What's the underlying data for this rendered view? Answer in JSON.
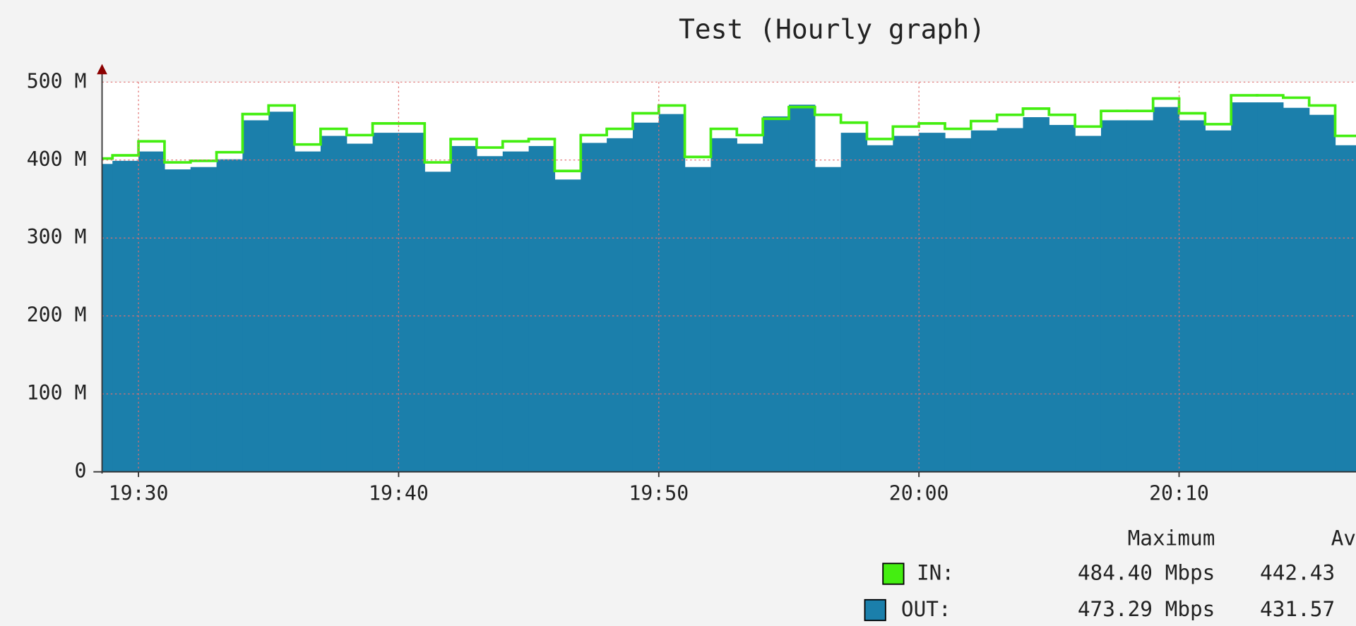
{
  "chart_data": {
    "type": "step-area",
    "title": "Test (Hourly graph)",
    "x": [
      1168,
      1169,
      1170,
      1171,
      1172,
      1173,
      1174,
      1175,
      1176,
      1177,
      1178,
      1179,
      1180,
      1181,
      1182,
      1183,
      1184,
      1185,
      1186,
      1187,
      1188,
      1189,
      1190,
      1191,
      1192,
      1193,
      1194,
      1195,
      1196,
      1197,
      1198,
      1199,
      1200,
      1201,
      1202,
      1203,
      1204,
      1205,
      1206,
      1207,
      1208,
      1209,
      1210,
      1211,
      1212,
      1213,
      1214,
      1215,
      1216
    ],
    "xlim": [
      1168.6,
      1216.8
    ],
    "xticks": [
      {
        "value": 1170,
        "label": "19:30"
      },
      {
        "value": 1180,
        "label": "19:40"
      },
      {
        "value": 1190,
        "label": "19:50"
      },
      {
        "value": 1200,
        "label": "20:00"
      },
      {
        "value": 1210,
        "label": "20:10"
      }
    ],
    "ylim": [
      0,
      500
    ],
    "yticks": [
      0,
      {
        "value": 100,
        "label": "100 M"
      },
      {
        "value": 200,
        "label": "200 M"
      },
      {
        "value": 300,
        "label": "300 M"
      },
      {
        "value": 400,
        "label": "400 M"
      },
      {
        "value": 500,
        "label": "500 M"
      }
    ],
    "grid": true,
    "series": [
      {
        "name": "IN:",
        "color": "#44ee11",
        "style": "line",
        "values": [
          402,
          406,
          424,
          397,
          399,
          410,
          459,
          470,
          420,
          440,
          432,
          447,
          447,
          397,
          427,
          416,
          424,
          427,
          386,
          432,
          440,
          460,
          470,
          404,
          440,
          432,
          453,
          468,
          458,
          448,
          427,
          443,
          447,
          440,
          450,
          458,
          466,
          458,
          443,
          463,
          463,
          479,
          460,
          446,
          483,
          483,
          480,
          470,
          431
        ]
      },
      {
        "name": "OUT:",
        "color": "#1b7fab",
        "style": "area",
        "values": [
          395,
          399,
          411,
          388,
          391,
          401,
          451,
          462,
          411,
          431,
          421,
          435,
          435,
          385,
          418,
          405,
          411,
          418,
          375,
          422,
          428,
          448,
          459,
          391,
          428,
          421,
          456,
          471,
          391,
          435,
          419,
          431,
          435,
          428,
          438,
          441,
          455,
          445,
          431,
          451,
          451,
          468,
          451,
          438,
          474,
          474,
          467,
          458,
          419
        ]
      }
    ],
    "legend": {
      "columns": [
        "Maximum",
        "Av"
      ],
      "rows": [
        [
          "484.40 Mbps",
          "442.43"
        ],
        [
          "473.29 Mbps",
          "431.57"
        ]
      ]
    }
  }
}
